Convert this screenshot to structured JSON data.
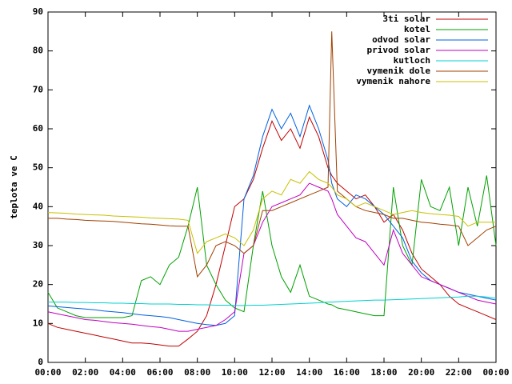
{
  "chart_data": {
    "type": "line",
    "ylabel": "teplota ve C",
    "x": [
      0,
      0.5,
      1,
      1.5,
      2,
      2.5,
      3,
      3.5,
      4,
      4.5,
      5,
      5.5,
      6,
      6.5,
      7,
      7.5,
      8,
      8.5,
      9,
      9.5,
      10,
      10.5,
      11,
      11.5,
      12,
      12.5,
      13,
      13.5,
      14,
      14.5,
      15,
      15.2,
      15.5,
      16,
      16.5,
      17,
      17.5,
      18,
      18.5,
      19,
      19.5,
      20,
      20.5,
      21,
      21.5,
      22,
      22.5,
      23,
      23.5,
      24
    ],
    "xlim": [
      0,
      24
    ],
    "xticks": [
      {
        "value": 0,
        "label": "00:00"
      },
      {
        "value": 2,
        "label": "02:00"
      },
      {
        "value": 4,
        "label": "04:00"
      },
      {
        "value": 6,
        "label": "06:00"
      },
      {
        "value": 8,
        "label": "08:00"
      },
      {
        "value": 10,
        "label": "10:00"
      },
      {
        "value": 12,
        "label": "12:00"
      },
      {
        "value": 14,
        "label": "14:00"
      },
      {
        "value": 16,
        "label": "16:00"
      },
      {
        "value": 18,
        "label": "18:00"
      },
      {
        "value": 20,
        "label": "20:00"
      },
      {
        "value": 22,
        "label": "22:00"
      },
      {
        "value": 24,
        "label": "00:00"
      }
    ],
    "ylim": [
      0,
      90
    ],
    "yticks": [
      0,
      10,
      20,
      30,
      40,
      50,
      60,
      70,
      80,
      90
    ],
    "legend": "top-right",
    "series": [
      {
        "name": "3ti solar",
        "color": "#c00000",
        "values": [
          10,
          9,
          8.5,
          8,
          7.5,
          7,
          6.5,
          6,
          5.5,
          5,
          5,
          4.8,
          4.5,
          4.2,
          4.2,
          6,
          8,
          12,
          20,
          30,
          40,
          42,
          47,
          55,
          62,
          57,
          60,
          55,
          63,
          58,
          50,
          48,
          46,
          44,
          42,
          43,
          40,
          36,
          38,
          34,
          28,
          24,
          22,
          20,
          17,
          15,
          14,
          13,
          12,
          11
        ]
      },
      {
        "name": "kotel",
        "color": "#00a000",
        "values": [
          18,
          14,
          13,
          12,
          11.5,
          11.5,
          11.5,
          11.5,
          11.5,
          12,
          21,
          22,
          20,
          25,
          27,
          35,
          45,
          25,
          20,
          16,
          14,
          13,
          30,
          44,
          30,
          22,
          18,
          25,
          17,
          16,
          15,
          14.8,
          14,
          13.5,
          13,
          12.5,
          12,
          12,
          45,
          30,
          25,
          47,
          40,
          39,
          45,
          30,
          45,
          35,
          48,
          30
        ]
      },
      {
        "name": "odvod solar",
        "color": "#0060e0",
        "values": [
          14.5,
          14.3,
          14.1,
          13.9,
          13.7,
          13.5,
          13.2,
          13,
          12.8,
          12.5,
          12.2,
          12,
          11.8,
          11.5,
          11,
          10.5,
          10,
          9.7,
          9.5,
          10,
          12,
          42,
          48,
          58,
          65,
          60,
          64,
          58,
          66,
          60,
          52,
          46,
          42,
          40,
          43,
          42,
          40,
          38,
          35,
          32,
          26,
          23,
          21,
          20,
          19,
          18,
          17.5,
          17,
          16.5,
          16
        ]
      },
      {
        "name": "privod solar",
        "color": "#c000c0",
        "values": [
          13,
          12.5,
          12,
          11.5,
          11,
          10.8,
          10.5,
          10.2,
          10,
          9.8,
          9.5,
          9.2,
          9,
          8.5,
          8,
          8,
          8.5,
          9,
          9.5,
          11,
          13,
          28,
          30,
          36,
          40,
          41,
          42,
          43,
          46,
          45,
          44,
          42,
          38,
          35,
          32,
          31,
          28,
          25,
          34,
          28,
          25,
          22,
          21,
          20,
          19,
          18,
          17,
          16,
          15.5,
          15
        ]
      },
      {
        "name": "kutloch",
        "color": "#00d0d0",
        "values": [
          15.5,
          15.5,
          15.5,
          15.4,
          15.4,
          15.3,
          15.3,
          15.2,
          15.2,
          15.1,
          15.1,
          15,
          15,
          15,
          14.9,
          14.9,
          14.8,
          14.8,
          14.7,
          14.7,
          14.6,
          14.6,
          14.7,
          14.7,
          14.8,
          14.9,
          15,
          15.1,
          15.2,
          15.3,
          15.5,
          15.5,
          15.6,
          15.7,
          15.8,
          15.9,
          16,
          16,
          16.1,
          16.2,
          16.3,
          16.4,
          16.5,
          16.6,
          16.7,
          16.8,
          17,
          17,
          16.8,
          16.5
        ]
      },
      {
        "name": "vymenik dole",
        "color": "#a04000",
        "values": [
          37,
          37,
          36.8,
          36.7,
          36.5,
          36.4,
          36.3,
          36.2,
          36,
          35.8,
          35.6,
          35.5,
          35.3,
          35.1,
          35,
          35,
          22,
          25,
          30,
          31,
          30,
          28,
          30,
          39,
          39,
          40,
          41,
          42,
          43,
          44,
          45,
          85,
          44,
          42,
          40,
          39,
          38.5,
          38,
          37,
          37,
          36.5,
          36,
          35.8,
          35.5,
          35.3,
          35,
          30,
          32,
          34,
          35
        ]
      },
      {
        "name": "vymenik nahore",
        "color": "#c8c000",
        "values": [
          38.5,
          38.4,
          38.3,
          38.1,
          38,
          37.9,
          37.8,
          37.6,
          37.5,
          37.4,
          37.3,
          37.1,
          37,
          36.9,
          36.8,
          36.5,
          28,
          31,
          32,
          33,
          32,
          30,
          34,
          42,
          44,
          43,
          47,
          46,
          49,
          47,
          46,
          45,
          43,
          42,
          40,
          41,
          40,
          39,
          38,
          38.5,
          39,
          38.5,
          38.2,
          38,
          37.8,
          37.5,
          35,
          36,
          36,
          36
        ]
      }
    ]
  }
}
